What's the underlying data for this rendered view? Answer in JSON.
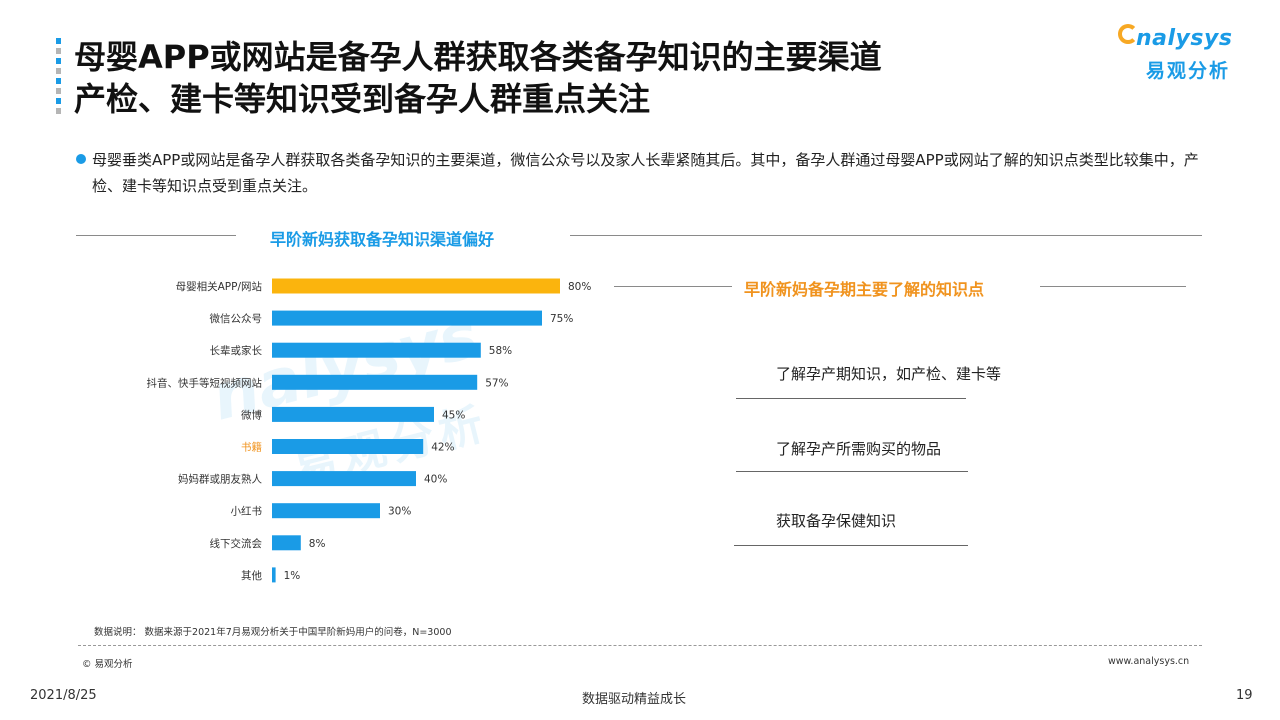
{
  "header": {
    "title_line1": "母婴APP或网站是备孕人群获取各类备孕知识的主要渠道",
    "title_line2": "产检、建卡等知识受到备孕人群重点关注"
  },
  "logo": {
    "en": "nalysys",
    "cn": "易观分析"
  },
  "bullet": "母婴垂类APP或网站是备孕人群获取各类备孕知识的主要渠道，微信公众号以及家人长辈紧随其后。其中，备孕人群通过母婴APP或网站了解的知识点类型比较集中，产检、建卡等知识点受到重点关注。",
  "colors": {
    "primary": "#1a9be6",
    "highlight": "#fbb40d",
    "orange_text": "#f0931e"
  },
  "chart_data": {
    "type": "bar",
    "orientation": "horizontal",
    "title": "早阶新妈获取备孕知识渠道偏好",
    "categories": [
      "母婴相关APP/网站",
      "微信公众号",
      "长辈或家长",
      "抖音、快手等短视频网站",
      "微博",
      "书籍",
      "妈妈群或朋友熟人",
      "小红书",
      "线下交流会",
      "其他"
    ],
    "values": [
      80,
      75,
      58,
      57,
      45,
      42,
      40,
      30,
      8,
      1
    ],
    "value_labels": [
      "80%",
      "75%",
      "58%",
      "57%",
      "45%",
      "42%",
      "40%",
      "30%",
      "8%",
      "1%"
    ],
    "unit": "%",
    "highlight_index": 0,
    "xlim": [
      0,
      100
    ],
    "grid": false
  },
  "knowledge": {
    "title": "早阶新妈备孕期主要了解的知识点",
    "items": [
      "了解孕产期知识，如产检、建卡等",
      "了解孕产所需购买的物品",
      "获取备孕保健知识"
    ]
  },
  "watermark": {
    "en": "nalysys",
    "cn": "易观分析"
  },
  "footer": {
    "note": "数据说明：   数据来源于2021年7月易观分析关于中国早阶新妈用户的问卷，N=3000",
    "copyright": "© 易观分析",
    "url": "www.analysys.cn",
    "date": "2021/8/25",
    "slogan": "数据驱动精益成长",
    "page": "19"
  }
}
